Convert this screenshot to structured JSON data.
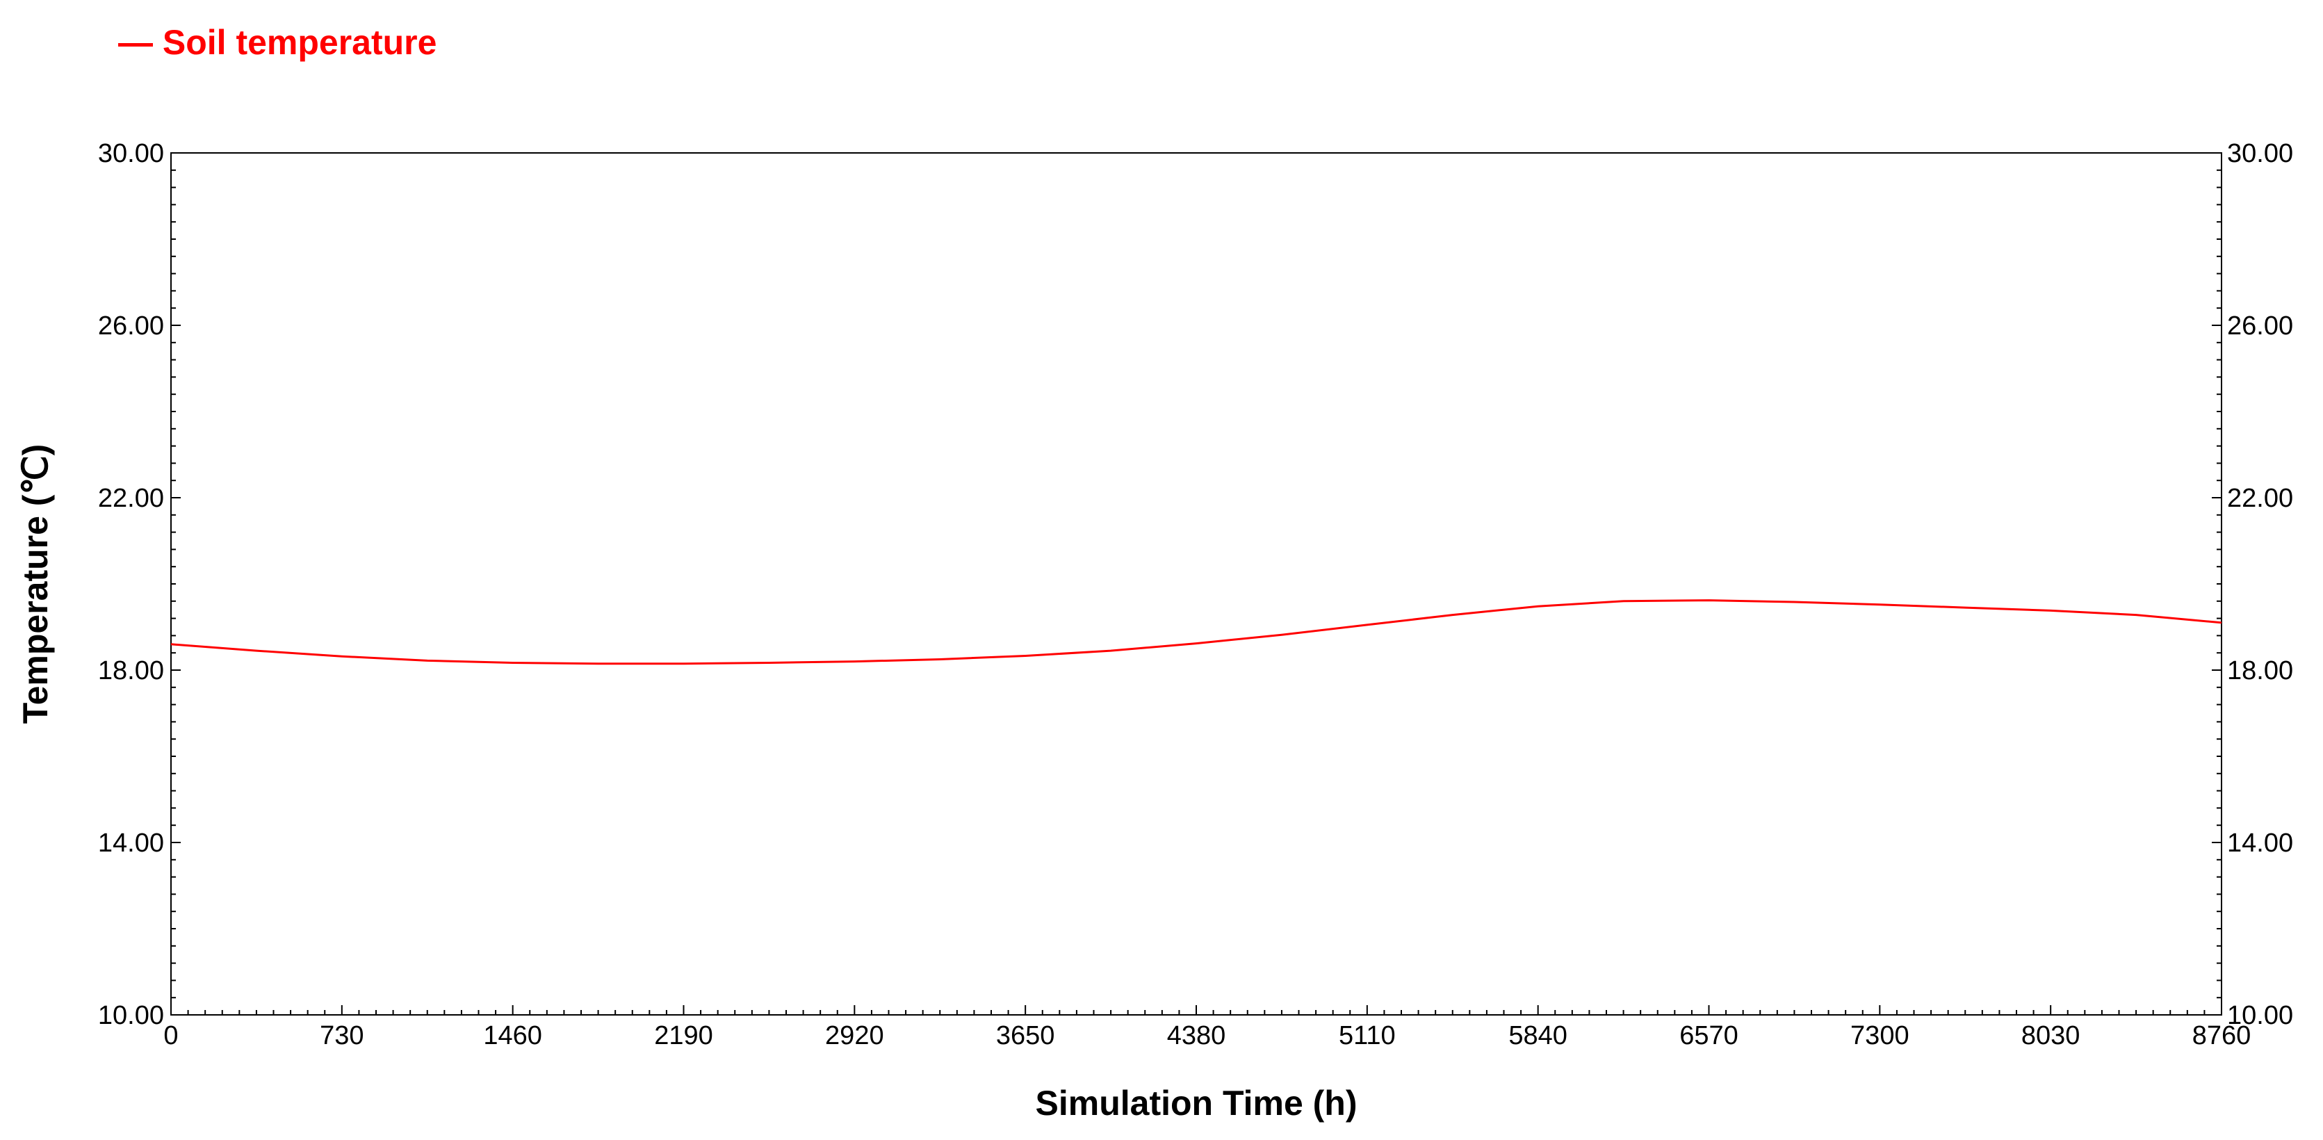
{
  "chart_data": {
    "type": "line",
    "legend": {
      "placement": "top-left",
      "prefix": "— "
    },
    "xlabel": "Simulation Time   (h)",
    "ylabel": "Temperature   (℃)",
    "xlim": [
      0,
      8760
    ],
    "ylim": [
      10,
      30
    ],
    "x_ticks": [
      "0",
      "730",
      "1460",
      "2190",
      "2920",
      "3650",
      "4380",
      "5110",
      "5840",
      "6570",
      "7300",
      "8030",
      "8760"
    ],
    "y_ticks": [
      "10.00",
      "14.00",
      "18.00",
      "22.00",
      "26.00",
      "30.00"
    ],
    "y_ticks_right": [
      "10.00",
      "14.00",
      "18.00",
      "22.00",
      "26.00",
      "30.00"
    ],
    "grid": false,
    "series": [
      {
        "name": "Soil temperature",
        "color": "#ff0000",
        "x": [
          0,
          365,
          730,
          1095,
          1460,
          1825,
          2190,
          2555,
          2920,
          3285,
          3650,
          4015,
          4380,
          4745,
          5110,
          5475,
          5840,
          6205,
          6570,
          6935,
          7300,
          7665,
          8030,
          8395,
          8760
        ],
        "y": [
          18.6,
          18.45,
          18.32,
          18.22,
          18.17,
          18.15,
          18.15,
          18.17,
          18.2,
          18.25,
          18.33,
          18.45,
          18.62,
          18.82,
          19.05,
          19.28,
          19.48,
          19.6,
          19.62,
          19.58,
          19.52,
          19.45,
          19.38,
          19.28,
          19.1
        ]
      }
    ]
  }
}
